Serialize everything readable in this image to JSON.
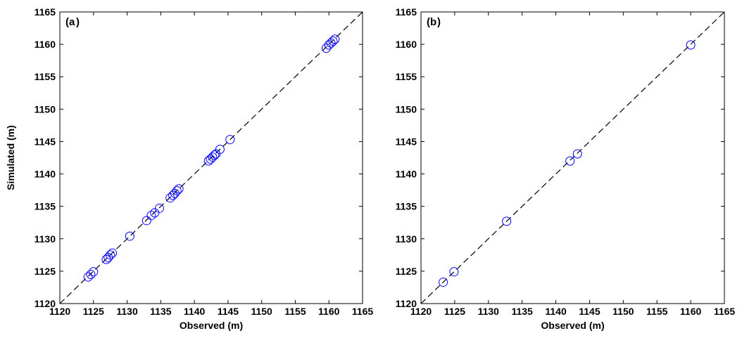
{
  "colors": {
    "marker": "#0000ff",
    "identity_line": "#000000",
    "axes": "#000000"
  },
  "chart_data": [
    {
      "type": "scatter",
      "panel_label": "a",
      "xlabel": "Observed (m)",
      "ylabel": "Simulated (m)",
      "xlim": [
        1120,
        1165
      ],
      "ylim": [
        1120,
        1165
      ],
      "ticks": [
        "1120",
        "1125",
        "1130",
        "1135",
        "1140",
        "1145",
        "1150",
        "1155",
        "1160",
        "1165"
      ],
      "grid": false,
      "identity_line": true,
      "marker": "open circle",
      "x": [
        1124.2,
        1124.6,
        1125.0,
        1126.9,
        1127.2,
        1127.5,
        1127.8,
        1130.4,
        1132.9,
        1133.6,
        1134.1,
        1134.8,
        1136.4,
        1136.8,
        1137.1,
        1137.4,
        1137.7,
        1142.1,
        1142.4,
        1142.7,
        1143.0,
        1143.2,
        1143.8,
        1145.3,
        1159.6,
        1160.0,
        1160.3,
        1160.6,
        1160.9
      ],
      "y": [
        1124.1,
        1124.5,
        1124.9,
        1126.8,
        1127.1,
        1127.5,
        1127.8,
        1130.4,
        1132.8,
        1133.6,
        1134.0,
        1134.7,
        1136.3,
        1136.7,
        1137.0,
        1137.4,
        1137.7,
        1142.0,
        1142.3,
        1142.6,
        1142.9,
        1143.1,
        1143.8,
        1145.3,
        1159.4,
        1159.9,
        1160.2,
        1160.5,
        1160.8
      ]
    },
    {
      "type": "scatter",
      "panel_label": "b",
      "xlabel": "Observed (m)",
      "ylabel": "",
      "xlim": [
        1120,
        1165
      ],
      "ylim": [
        1120,
        1165
      ],
      "ticks": [
        "1120",
        "1125",
        "1130",
        "1135",
        "1140",
        "1145",
        "1150",
        "1155",
        "1160",
        "1165"
      ],
      "grid": false,
      "identity_line": true,
      "marker": "open circle",
      "x": [
        1123.3,
        1124.9,
        1132.7,
        1142.1,
        1143.2,
        1160.0
      ],
      "y": [
        1123.3,
        1124.9,
        1132.7,
        1142.0,
        1143.1,
        1159.9
      ]
    }
  ]
}
